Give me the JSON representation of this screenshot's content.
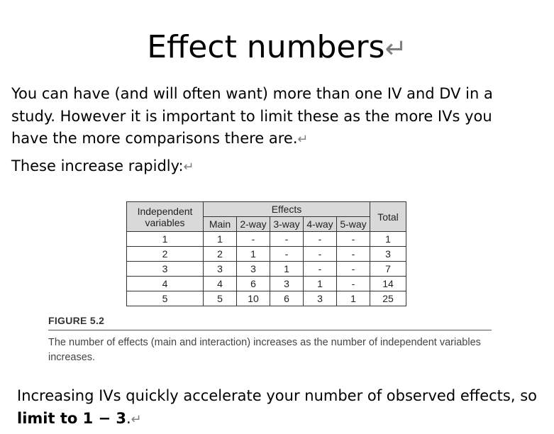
{
  "title": "Effect numbers",
  "paragraph_mark": "↵",
  "p1": "You can have (and will often want) more than one IV and DV in a study. However it is important to limit these as the more IVs you have the more comparisons there are.",
  "p2": "These increase rapidly:",
  "table": {
    "header_iv": "Independent variables",
    "header_effects": "Effects",
    "header_total": "Total",
    "sub_headers": [
      "Main",
      "2-way",
      "3-way",
      "4-way",
      "5-way"
    ],
    "rows": [
      [
        "1",
        "1",
        "-",
        "-",
        "-",
        "-",
        "1"
      ],
      [
        "2",
        "2",
        "1",
        "-",
        "-",
        "-",
        "3"
      ],
      [
        "3",
        "3",
        "3",
        "1",
        "-",
        "-",
        "7"
      ],
      [
        "4",
        "4",
        "6",
        "3",
        "1",
        "-",
        "14"
      ],
      [
        "5",
        "5",
        "10",
        "6",
        "3",
        "1",
        "25"
      ]
    ]
  },
  "figure": {
    "label": "FIGURE 5.2",
    "caption": "The number of effects (main and interaction) increases as the number of independent variables increases."
  },
  "p3_line1": "Increasing IVs quickly accelerate your number of observed effects, so",
  "p3_bold": "limit to 1 − 3",
  "p3_end": "."
}
